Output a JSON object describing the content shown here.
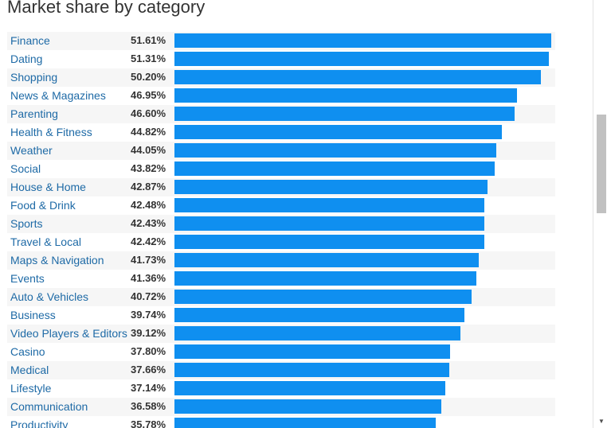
{
  "chart_data": {
    "type": "bar",
    "orientation": "horizontal",
    "title": "Market share by category",
    "xlabel": "",
    "ylabel": "",
    "xlim": [
      0,
      51.61
    ],
    "grid": false,
    "bar_color": "#0f8ff0",
    "label_color": "#1e6aa6",
    "categories": [
      "Finance",
      "Dating",
      "Shopping",
      "News & Magazines",
      "Parenting",
      "Health & Fitness",
      "Weather",
      "Social",
      "House & Home",
      "Food & Drink",
      "Sports",
      "Travel & Local",
      "Maps & Navigation",
      "Events",
      "Auto & Vehicles",
      "Business",
      "Video Players & Editors",
      "Casino",
      "Medical",
      "Lifestyle",
      "Communication",
      "Productivity"
    ],
    "values": [
      51.61,
      51.31,
      50.2,
      46.95,
      46.6,
      44.82,
      44.05,
      43.82,
      42.87,
      42.48,
      42.43,
      42.42,
      41.73,
      41.36,
      40.72,
      39.74,
      39.12,
      37.8,
      37.66,
      37.14,
      36.58,
      35.78
    ],
    "value_labels": [
      "51.61%",
      "51.31%",
      "50.20%",
      "46.95%",
      "46.60%",
      "44.82%",
      "44.05%",
      "43.82%",
      "42.87%",
      "42.48%",
      "42.43%",
      "42.42%",
      "41.73%",
      "41.36%",
      "40.72%",
      "39.74%",
      "39.12%",
      "37.80%",
      "37.66%",
      "37.14%",
      "36.58%",
      "35.78%"
    ]
  }
}
